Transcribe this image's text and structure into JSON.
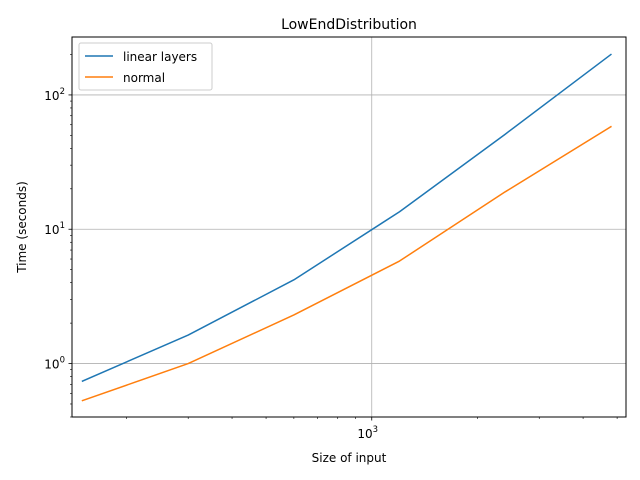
{
  "chart_data": {
    "type": "line",
    "title": "LowEndDistribution",
    "xlabel": "Size of input",
    "ylabel": "Time (seconds)",
    "xscale": "log",
    "yscale": "log",
    "xlim": [
      140,
      5300
    ],
    "ylim": [
      0.4,
      270
    ],
    "grid": "major",
    "legend_position": "upper-left",
    "x_tick_labels": [
      {
        "value": 1000,
        "mantissa": "10",
        "exponent": "3"
      }
    ],
    "y_tick_labels": [
      {
        "value": 1,
        "mantissa": "10",
        "exponent": "0"
      },
      {
        "value": 10,
        "mantissa": "10",
        "exponent": "1"
      },
      {
        "value": 100,
        "mantissa": "10",
        "exponent": "2"
      }
    ],
    "x": [
      150,
      300,
      600,
      1200,
      2400,
      4800
    ],
    "series": [
      {
        "name": "linear layers",
        "color": "#1f77b4",
        "values": [
          0.74,
          1.63,
          4.2,
          13.5,
          51,
          200
        ]
      },
      {
        "name": "normal",
        "color": "#ff7f0e",
        "values": [
          0.53,
          1.0,
          2.3,
          5.8,
          19,
          58
        ]
      }
    ]
  }
}
